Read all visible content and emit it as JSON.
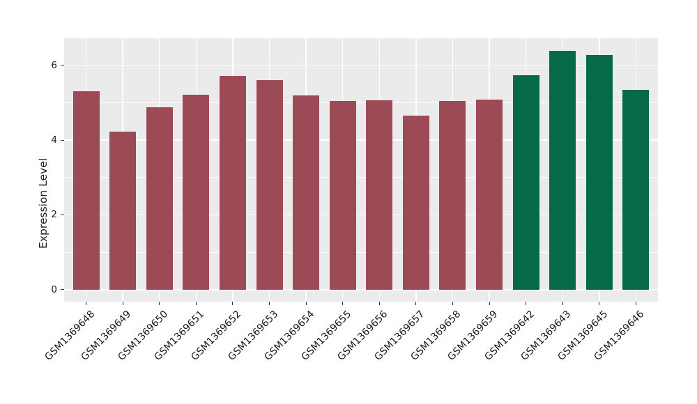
{
  "figure": {
    "background": "#ffffff",
    "panel_background": "#ebebeb",
    "grid_color": "#ffffff",
    "tick_color": "#333333",
    "text_color": "#1a1a1a"
  },
  "chart_data": {
    "type": "bar",
    "title": "",
    "xlabel": "",
    "ylabel": "Expression Level",
    "ylim": [
      -0.32,
      6.72
    ],
    "yticks": [
      0,
      2,
      4,
      6
    ],
    "yticks_minor": [
      1,
      3,
      5
    ],
    "grid": true,
    "legend": false,
    "x_tick_angle": -45,
    "categories": [
      "GSM1369648",
      "GSM1369649",
      "GSM1369650",
      "GSM1369651",
      "GSM1369652",
      "GSM1369653",
      "GSM1369654",
      "GSM1369655",
      "GSM1369656",
      "GSM1369657",
      "GSM1369658",
      "GSM1369659",
      "GSM1369642",
      "GSM1369643",
      "GSM1369645",
      "GSM1369646"
    ],
    "values": [
      5.3,
      4.22,
      4.87,
      5.22,
      5.71,
      5.6,
      5.2,
      5.04,
      5.07,
      4.66,
      5.05,
      5.09,
      5.73,
      6.38,
      6.28,
      5.34
    ],
    "bar_colors": [
      "#9d4a57",
      "#9d4a57",
      "#9d4a57",
      "#9d4a57",
      "#9d4a57",
      "#9d4a57",
      "#9d4a57",
      "#9d4a57",
      "#9d4a57",
      "#9d4a57",
      "#9d4a57",
      "#9d4a57",
      "#066a4a",
      "#066a4a",
      "#066a4a",
      "#066a4a"
    ],
    "group_colors": {
      "group_1": "#9d4a57",
      "group_2": "#066a4a"
    }
  }
}
